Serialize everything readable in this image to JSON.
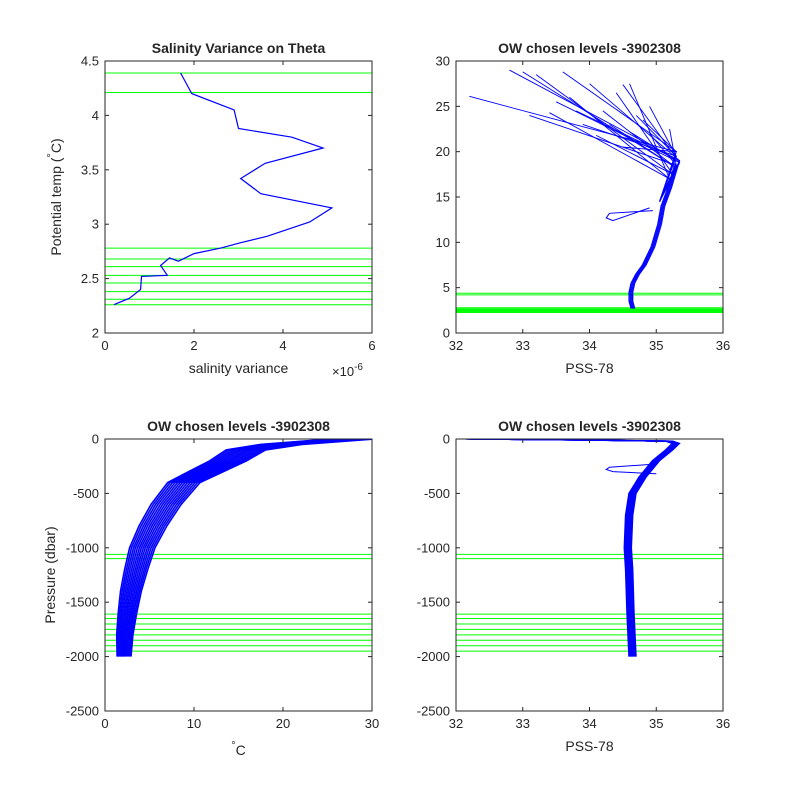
{
  "colors": {
    "profile": "#0000ff",
    "levels": "#00ff00",
    "axes": "#262626"
  },
  "chart_data": [
    {
      "type": "line",
      "title": "Salinity Variance on Theta",
      "xlabel": "salinity variance",
      "ylabel_main": "Potential temp (",
      "ylabel_deg": "°",
      "ylabel_unit": "C)",
      "x_exponent_base": "×10",
      "x_exponent": "-6",
      "xlim": [
        0,
        6
      ],
      "ylim": [
        2,
        4.5
      ],
      "xticks": [
        0,
        2,
        4,
        6
      ],
      "xtick_labels": [
        "0",
        "2",
        "4",
        "6"
      ],
      "yticks": [
        2,
        2.5,
        3,
        3.5,
        4,
        4.5
      ],
      "ytick_labels": [
        "2",
        "2.5",
        "3",
        "3.5",
        "4",
        "4.5"
      ],
      "series": [
        {
          "x": [
            0.2,
            0.55,
            0.8,
            0.82,
            1.4,
            1.25,
            1.45,
            1.65,
            2.0,
            2.6,
            3.05,
            3.65,
            4.6,
            5.1,
            3.5,
            3.05,
            3.6,
            4.9,
            4.2,
            3.0,
            2.9,
            1.95,
            1.7
          ],
          "y": [
            2.26,
            2.32,
            2.4,
            2.52,
            2.53,
            2.62,
            2.69,
            2.66,
            2.73,
            2.78,
            2.83,
            2.89,
            3.02,
            3.15,
            3.28,
            3.42,
            3.56,
            3.7,
            3.8,
            3.88,
            4.05,
            4.2,
            4.39
          ]
        }
      ],
      "hlines": [
        4.39,
        4.21,
        2.78,
        2.68,
        2.61,
        2.53,
        2.46,
        2.38,
        2.31,
        2.26
      ]
    },
    {
      "type": "line",
      "title": "OW chosen levels -3902308",
      "xlabel": "PSS-78",
      "ylabel": "",
      "xlim": [
        32,
        36
      ],
      "ylim": [
        0,
        30
      ],
      "xticks": [
        32,
        33,
        34,
        35,
        36
      ],
      "xtick_labels": [
        "32",
        "33",
        "34",
        "35",
        "36"
      ],
      "yticks": [
        0,
        5,
        10,
        15,
        20,
        25,
        30
      ],
      "ytick_labels": [
        "0",
        "5",
        "10",
        "15",
        "20",
        "25",
        "30"
      ],
      "series": [
        {
          "x": [
            34.65,
            34.62,
            34.62,
            34.65,
            34.72,
            34.82,
            34.95,
            35.05,
            35.1,
            35.2,
            35.3
          ],
          "y": [
            2.7,
            3.5,
            4.5,
            5.5,
            6.5,
            7.5,
            9.5,
            12,
            14,
            16,
            18.5
          ]
        }
      ],
      "spaghetti": {
        "tops": [
          [
            32.2,
            26.1
          ],
          [
            32.8,
            29.0
          ],
          [
            33.0,
            28.8
          ],
          [
            33.2,
            28.5
          ],
          [
            33.5,
            25.5
          ],
          [
            33.7,
            26.0
          ],
          [
            33.9,
            23.0
          ],
          [
            33.1,
            24.0
          ],
          [
            33.6,
            28.8
          ],
          [
            34.0,
            27.5
          ],
          [
            34.2,
            24.5
          ],
          [
            34.4,
            26.5
          ],
          [
            34.5,
            27.4
          ],
          [
            34.6,
            27.5
          ],
          [
            34.7,
            24.0
          ],
          [
            34.9,
            22.0
          ],
          [
            34.8,
            23.5
          ],
          [
            33.8,
            24.5
          ],
          [
            34.3,
            23.0
          ],
          [
            34.1,
            21.8
          ],
          [
            34.6,
            22.2
          ],
          [
            33.4,
            24.3
          ],
          [
            34.9,
            25.0
          ],
          [
            35.2,
            22.5
          ],
          [
            34.5,
            20.5
          ]
        ],
        "mid": [
          [
            35.3,
            20.0
          ],
          [
            35.35,
            19.0
          ],
          [
            35.3,
            18.2
          ],
          [
            35.25,
            17.5
          ],
          [
            35.35,
            18.8
          ],
          [
            35.2,
            17.0
          ],
          [
            35.3,
            19.5
          ],
          [
            35.3,
            18.5
          ]
        ],
        "inversion": {
          "x": [
            34.95,
            34.3,
            34.25,
            34.35,
            34.9
          ],
          "y": [
            13.5,
            13.2,
            12.7,
            12.4,
            13.8
          ]
        }
      },
      "hlines": [
        4.39,
        4.21,
        2.78,
        2.68,
        2.61,
        2.53,
        2.46,
        2.38,
        2.31,
        2.26
      ]
    },
    {
      "type": "line",
      "title": "OW chosen levels -3902308",
      "xlabel_deg": "°",
      "xlabel_unit": "C",
      "ylabel": "Pressure (dbar)",
      "xlim": [
        0,
        30
      ],
      "ylim": [
        -2500,
        0
      ],
      "xticks": [
        0,
        10,
        20,
        30
      ],
      "xtick_labels": [
        "0",
        "10",
        "20",
        "30"
      ],
      "yticks": [
        -2500,
        -2000,
        -1500,
        -1000,
        -500,
        0
      ],
      "ytick_labels": [
        "-2500",
        "-2000",
        "-1500",
        "-1000",
        "-500",
        "0"
      ],
      "series": [
        {
          "x": [
            2.2,
            2.3,
            2.6,
            3.0,
            3.6,
            4.3,
            5.5,
            7.0,
            9.0,
            11.5,
            14.0,
            16.0,
            20.0,
            28.0
          ],
          "y": [
            -2000,
            -1800,
            -1600,
            -1400,
            -1200,
            -1000,
            -800,
            -600,
            -400,
            -300,
            -200,
            -100,
            -50,
            0
          ]
        }
      ],
      "hlines": [
        -1060,
        -1100,
        -1610,
        -1650,
        -1700,
        -1750,
        -1800,
        -1850,
        -1900,
        -1950
      ]
    },
    {
      "type": "line",
      "title": "OW chosen levels -3902308",
      "xlabel": "PSS-78",
      "ylabel": "",
      "xlim": [
        32,
        36
      ],
      "ylim": [
        -2500,
        0
      ],
      "xticks": [
        32,
        33,
        34,
        35,
        36
      ],
      "xtick_labels": [
        "32",
        "33",
        "34",
        "35",
        "36"
      ],
      "yticks": [
        -2500,
        -2000,
        -1500,
        -1000,
        -500,
        0
      ],
      "ytick_labels": [
        "-2500",
        "-2000",
        "-1500",
        "-1000",
        "-500",
        "0"
      ],
      "series": [
        {
          "x": [
            34.65,
            34.62,
            34.6,
            34.58,
            34.6,
            34.65,
            34.8,
            35.0,
            35.2,
            35.3,
            35.2,
            34.0,
            32.2
          ],
          "y": [
            -2000,
            -1600,
            -1200,
            -1000,
            -700,
            -500,
            -350,
            -200,
            -100,
            -40,
            -20,
            -10,
            0
          ]
        }
      ],
      "inversion": {
        "x": [
          35.0,
          34.3,
          34.25,
          34.35,
          35.0
        ],
        "y": [
          -230,
          -260,
          -280,
          -300,
          -320
        ]
      },
      "hlines": [
        -1060,
        -1100,
        -1610,
        -1650,
        -1700,
        -1750,
        -1800,
        -1850,
        -1900,
        -1950
      ]
    }
  ]
}
